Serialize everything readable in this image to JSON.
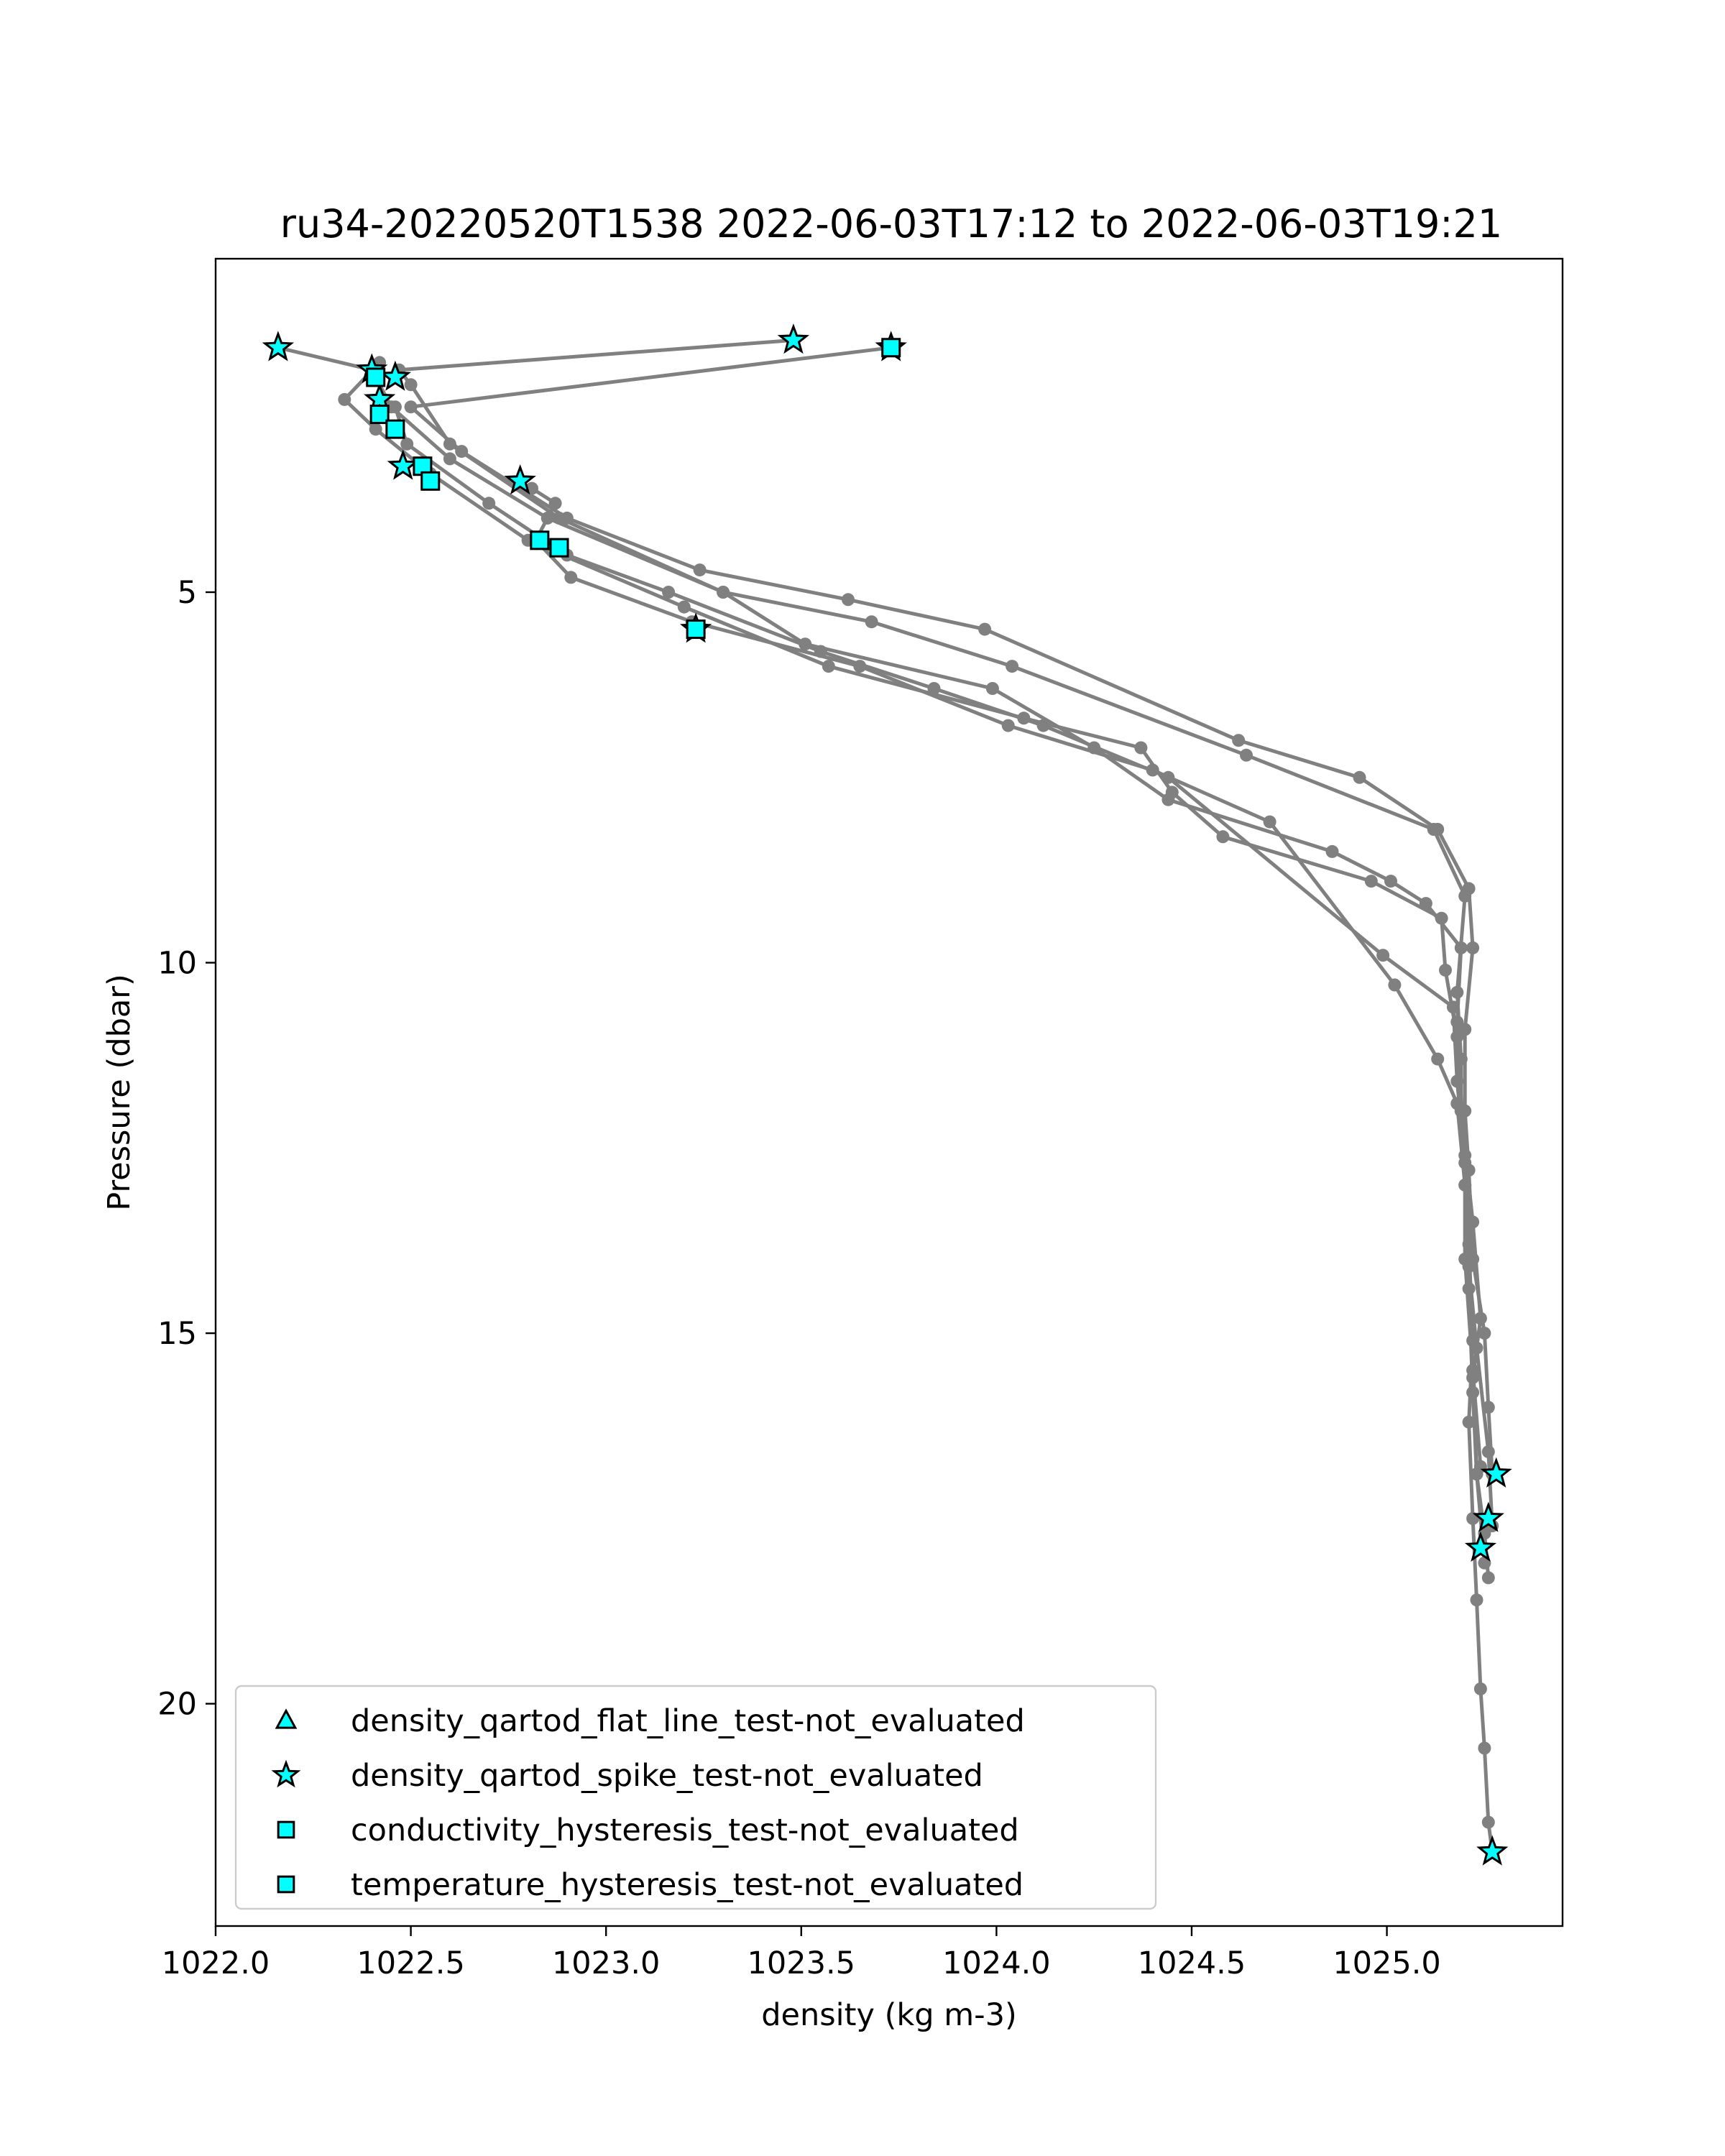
{
  "chart_data": {
    "type": "scatter",
    "title": "ru34-20220520T1538 2022-06-03T17:12 to 2022-06-03T19:21",
    "xlabel": "density (kg m-3)",
    "ylabel": "Pressure (dbar)",
    "xlim": [
      1022.0,
      1025.45
    ],
    "ylim": [
      23.0,
      0.5
    ],
    "y_inverted": true,
    "xticks": [
      1022.0,
      1022.5,
      1023.0,
      1023.5,
      1024.0,
      1024.5,
      1025.0
    ],
    "xtick_labels": [
      "1022.0",
      "1022.5",
      "1023.0",
      "1023.5",
      "1024.0",
      "1024.5",
      "1025.0"
    ],
    "yticks": [
      5,
      10,
      15,
      20
    ],
    "ytick_labels": [
      "5",
      "10",
      "15",
      "20"
    ],
    "grid": false,
    "legend_position": "lower-left",
    "profile_color": "#808080",
    "flag_fill": "#00ffff",
    "flag_edge": "#000000",
    "profiles": [
      {
        "points": [
          [
            1023.48,
            1.6
          ],
          [
            1022.47,
            2.0
          ],
          [
            1022.5,
            2.2
          ],
          [
            1022.6,
            3.0
          ],
          [
            1022.88,
            4.0
          ],
          [
            1023.3,
            5.0
          ],
          [
            1023.68,
            5.4
          ],
          [
            1024.04,
            6.0
          ],
          [
            1024.64,
            7.2
          ],
          [
            1025.12,
            8.2
          ],
          [
            1025.2,
            9.1
          ],
          [
            1025.18,
            10.4
          ],
          [
            1025.19,
            11.3
          ],
          [
            1025.19,
            12.0
          ],
          [
            1025.2,
            13.0
          ],
          [
            1025.2,
            14.0
          ],
          [
            1025.22,
            15.5
          ],
          [
            1025.24,
            16.8
          ]
        ]
      },
      {
        "points": [
          [
            1023.73,
            1.7
          ],
          [
            1022.5,
            2.5
          ],
          [
            1022.63,
            3.1
          ],
          [
            1022.9,
            4.0
          ],
          [
            1023.24,
            4.7
          ],
          [
            1023.62,
            5.1
          ],
          [
            1023.97,
            5.5
          ],
          [
            1024.62,
            7.0
          ],
          [
            1024.93,
            7.5
          ],
          [
            1025.13,
            8.2
          ],
          [
            1025.21,
            9.0
          ],
          [
            1025.22,
            9.8
          ],
          [
            1025.2,
            10.9
          ],
          [
            1025.2,
            12.0
          ],
          [
            1025.21,
            12.8
          ],
          [
            1025.22,
            14.0
          ],
          [
            1025.25,
            15.0
          ],
          [
            1025.26,
            16.0
          ],
          [
            1025.27,
            16.9
          ]
        ]
      },
      {
        "points": [
          [
            1022.16,
            1.7
          ],
          [
            1022.4,
            2.0
          ],
          [
            1022.45,
            2.5
          ],
          [
            1022.6,
            3.2
          ],
          [
            1022.85,
            4.0
          ],
          [
            1023.3,
            5.0
          ],
          [
            1023.51,
            5.7
          ],
          [
            1023.99,
            6.3
          ],
          [
            1024.25,
            7.1
          ],
          [
            1024.44,
            7.8
          ],
          [
            1024.86,
            8.5
          ],
          [
            1025.01,
            8.9
          ],
          [
            1025.1,
            9.2
          ],
          [
            1025.19,
            9.8
          ],
          [
            1025.18,
            10.8
          ],
          [
            1025.19,
            12.0
          ],
          [
            1025.22,
            13.5
          ],
          [
            1025.24,
            14.8
          ],
          [
            1025.22,
            15.6
          ],
          [
            1025.23,
            16.9
          ],
          [
            1025.25,
            18.1
          ]
        ]
      },
      {
        "points": [
          [
            1022.42,
            1.9
          ],
          [
            1022.33,
            2.4
          ],
          [
            1022.41,
            2.8
          ],
          [
            1022.55,
            3.4
          ],
          [
            1022.8,
            4.3
          ],
          [
            1023.2,
            5.2
          ],
          [
            1023.57,
            6.0
          ],
          [
            1024.07,
            6.7
          ],
          [
            1024.37,
            7.1
          ],
          [
            1024.45,
            7.7
          ],
          [
            1024.58,
            8.3
          ],
          [
            1024.96,
            8.9
          ],
          [
            1025.14,
            9.4
          ],
          [
            1025.15,
            10.1
          ],
          [
            1025.18,
            11.0
          ],
          [
            1025.2,
            12.6
          ],
          [
            1025.21,
            14.1
          ],
          [
            1025.23,
            15.2
          ],
          [
            1025.26,
            16.6
          ],
          [
            1025.27,
            17.6
          ]
        ]
      },
      {
        "points": [
          [
            1022.46,
            2.5
          ],
          [
            1022.49,
            3.0
          ],
          [
            1022.7,
            3.8
          ],
          [
            1022.9,
            4.5
          ],
          [
            1023.16,
            5.0
          ],
          [
            1023.55,
            5.8
          ],
          [
            1023.84,
            6.3
          ],
          [
            1024.12,
            6.8
          ],
          [
            1024.44,
            7.5
          ],
          [
            1024.99,
            9.9
          ],
          [
            1025.17,
            10.6
          ],
          [
            1025.18,
            11.6
          ],
          [
            1025.2,
            12.7
          ],
          [
            1025.21,
            13.8
          ],
          [
            1025.22,
            15.1
          ],
          [
            1025.21,
            16.2
          ],
          [
            1025.22,
            17.5
          ],
          [
            1025.23,
            18.6
          ],
          [
            1025.24,
            19.8
          ],
          [
            1025.25,
            20.6
          ],
          [
            1025.26,
            21.6
          ],
          [
            1025.27,
            22.0
          ]
        ]
      },
      {
        "points": [
          [
            1022.81,
            3.6
          ],
          [
            1022.87,
            3.8
          ],
          [
            1022.82,
            4.3
          ],
          [
            1022.91,
            4.8
          ],
          [
            1023.22,
            5.4
          ],
          [
            1023.65,
            6.0
          ],
          [
            1024.03,
            6.8
          ],
          [
            1024.4,
            7.4
          ],
          [
            1024.7,
            8.1
          ],
          [
            1025.02,
            10.3
          ],
          [
            1025.13,
            11.3
          ],
          [
            1025.18,
            11.9
          ],
          [
            1025.2,
            13.0
          ],
          [
            1025.21,
            14.4
          ],
          [
            1025.22,
            15.8
          ],
          [
            1025.23,
            16.9
          ],
          [
            1025.25,
            17.7
          ],
          [
            1025.26,
            18.3
          ]
        ]
      }
    ],
    "flags": [
      {
        "series": 1,
        "points": [
          [
            1022.16,
            1.7
          ],
          [
            1023.48,
            1.6
          ],
          [
            1022.4,
            2.0
          ],
          [
            1022.46,
            2.1
          ],
          [
            1022.42,
            2.4
          ],
          [
            1022.48,
            3.3
          ],
          [
            1022.78,
            3.5
          ],
          [
            1023.23,
            5.5
          ],
          [
            1023.73,
            1.7
          ],
          [
            1025.28,
            16.9
          ],
          [
            1025.26,
            17.5
          ],
          [
            1025.24,
            17.9
          ],
          [
            1025.27,
            22.0
          ]
        ]
      },
      {
        "series": 3,
        "points": [
          [
            1022.41,
            2.1
          ],
          [
            1023.73,
            1.7
          ],
          [
            1022.42,
            2.6
          ],
          [
            1022.46,
            2.8
          ],
          [
            1022.53,
            3.3
          ],
          [
            1022.55,
            3.5
          ],
          [
            1022.83,
            4.3
          ],
          [
            1022.88,
            4.4
          ],
          [
            1023.23,
            5.5
          ]
        ]
      }
    ],
    "series": [
      {
        "name": "density_qartod_flat_line_test-not_evaluated",
        "marker": "triangle"
      },
      {
        "name": "density_qartod_spike_test-not_evaluated",
        "marker": "star"
      },
      {
        "name": "conductivity_hysteresis_test-not_evaluated",
        "marker": "square"
      },
      {
        "name": "temperature_hysteresis_test-not_evaluated",
        "marker": "square"
      }
    ]
  }
}
